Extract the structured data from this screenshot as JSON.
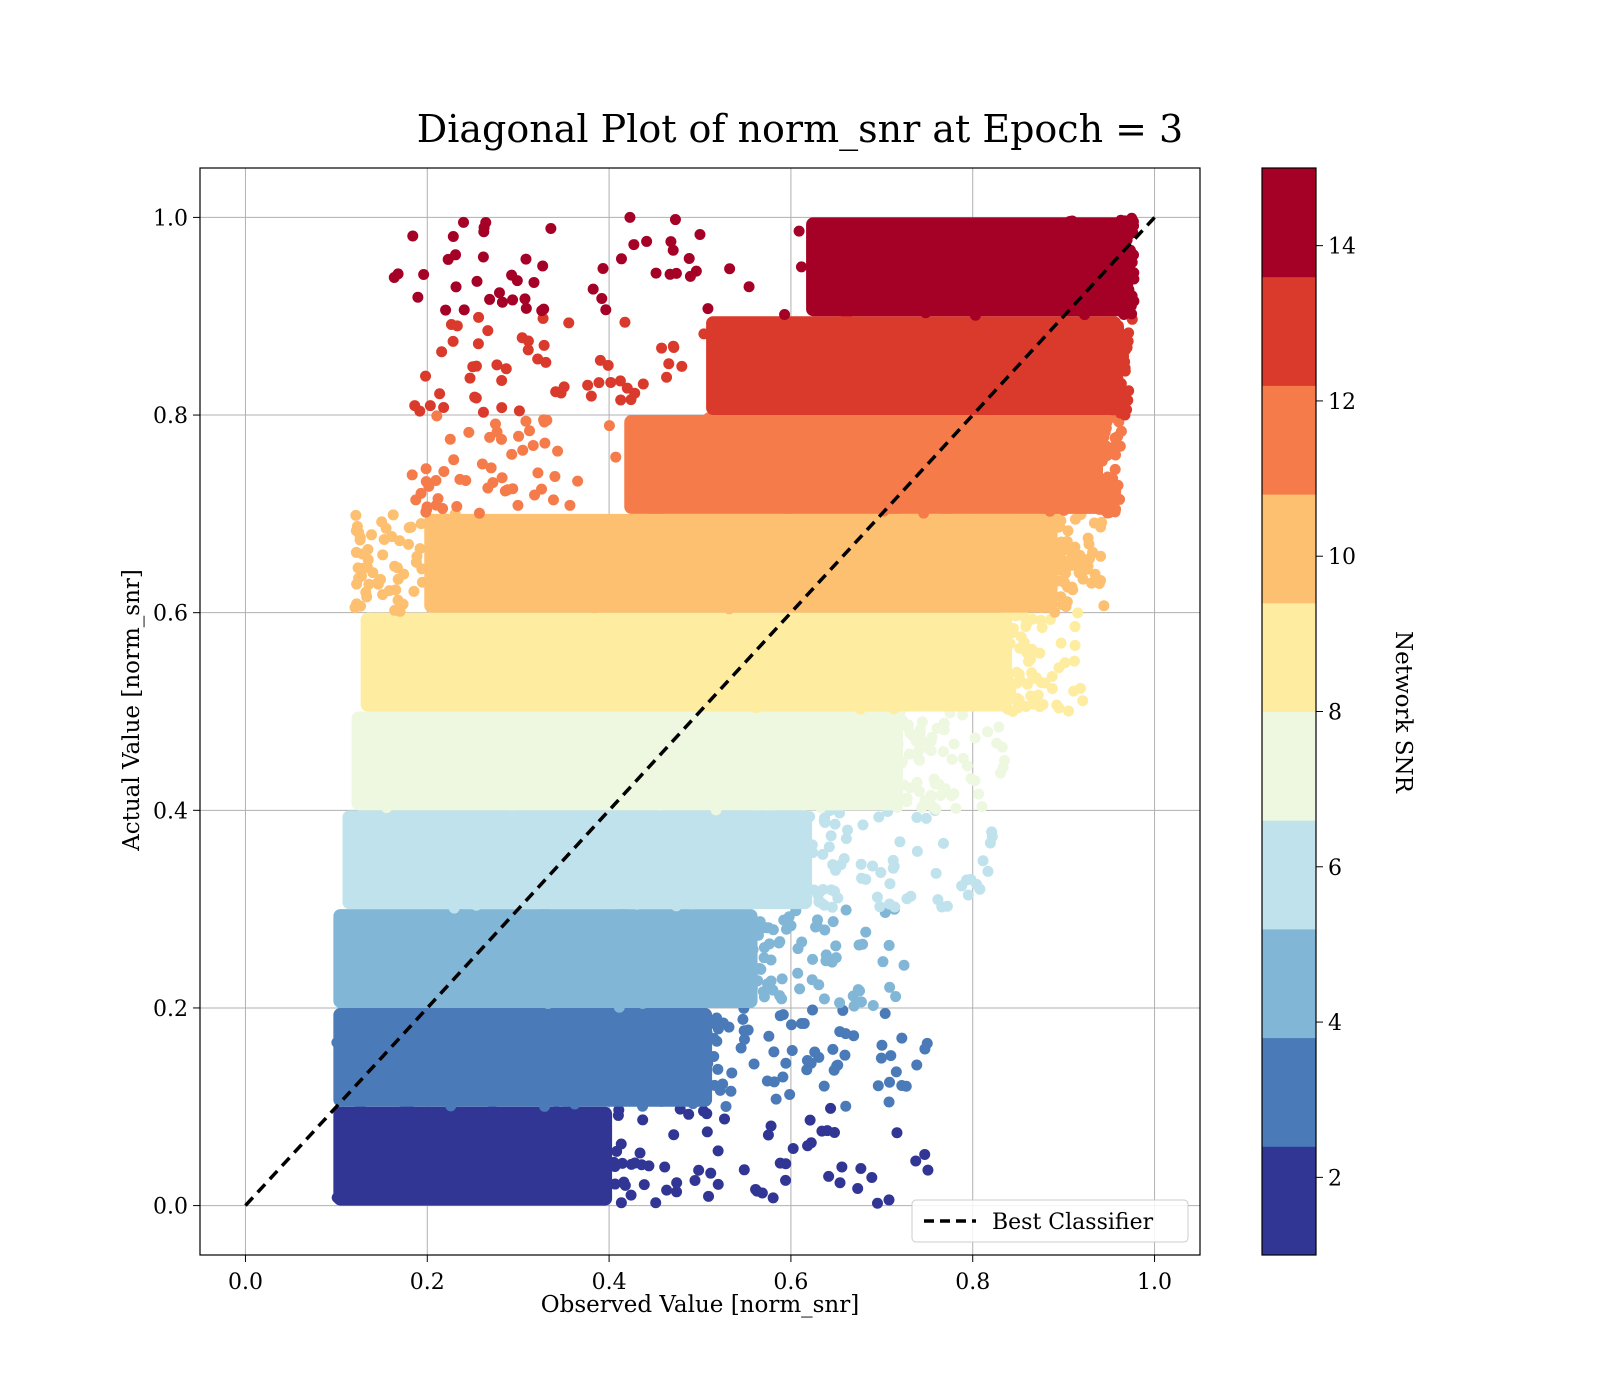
{
  "chart_data": {
    "type": "scatter",
    "title": "Diagonal Plot of norm_snr at Epoch = 3",
    "xlabel": "Observed Value [norm_snr]",
    "ylabel": "Actual Value [norm_snr]",
    "xlim": [
      -0.05,
      1.05
    ],
    "ylim": [
      -0.05,
      1.05
    ],
    "x_ticks": [
      "0.0",
      "0.2",
      "0.4",
      "0.6",
      "0.8",
      "1.0"
    ],
    "y_ticks": [
      "0.0",
      "0.2",
      "0.4",
      "0.6",
      "0.8",
      "1.0"
    ],
    "grid": true,
    "colorbar": {
      "label": "Network SNR",
      "range": [
        1,
        15
      ],
      "ticks": [
        "2",
        "4",
        "6",
        "8",
        "10",
        "12",
        "14"
      ],
      "bands": [
        {
          "from": 1.0,
          "to": 2.4,
          "color": "#313695"
        },
        {
          "from": 2.4,
          "to": 3.8,
          "color": "#4a7ab7"
        },
        {
          "from": 3.8,
          "to": 5.2,
          "color": "#81b6d6"
        },
        {
          "from": 5.2,
          "to": 6.6,
          "color": "#bfe2ed"
        },
        {
          "from": 6.6,
          "to": 8.0,
          "color": "#eef7e0"
        },
        {
          "from": 8.0,
          "to": 9.4,
          "color": "#feeda1"
        },
        {
          "from": 9.4,
          "to": 10.8,
          "color": "#fdbf70"
        },
        {
          "from": 10.8,
          "to": 12.2,
          "color": "#f57b4a"
        },
        {
          "from": 12.2,
          "to": 13.6,
          "color": "#da3a2b"
        },
        {
          "from": 13.6,
          "to": 15.0,
          "color": "#a50026"
        }
      ]
    },
    "scatter_bands": [
      {
        "y": [
          0.0,
          0.1
        ],
        "dense_x": [
          0.1,
          0.4
        ],
        "spread_x": [
          0.4,
          0.75
        ],
        "color": "#313695"
      },
      {
        "y": [
          0.1,
          0.2
        ],
        "dense_x": [
          0.1,
          0.51
        ],
        "spread_x": [
          0.51,
          0.75
        ],
        "color": "#4a7ab7"
      },
      {
        "y": [
          0.2,
          0.3
        ],
        "dense_x": [
          0.1,
          0.56
        ],
        "spread_x": [
          0.56,
          0.72
        ],
        "color": "#81b6d6"
      },
      {
        "y": [
          0.3,
          0.4
        ],
        "dense_x": [
          0.11,
          0.62
        ],
        "spread_x": [
          0.62,
          0.83
        ],
        "color": "#bfe2ed"
      },
      {
        "y": [
          0.4,
          0.5
        ],
        "dense_x": [
          0.12,
          0.72
        ],
        "spread_x": [
          0.72,
          0.85
        ],
        "color": "#eef7e0"
      },
      {
        "y": [
          0.5,
          0.6
        ],
        "dense_x": [
          0.13,
          0.84
        ],
        "spread_x": [
          0.84,
          0.92
        ],
        "color": "#feeda1"
      },
      {
        "y": [
          0.6,
          0.7
        ],
        "dense_x": [
          0.2,
          0.89
        ],
        "spread_x": [
          0.89,
          0.94
        ],
        "color": "#fdbf70"
      },
      {
        "y": [
          0.7,
          0.8
        ],
        "dense_x": [
          0.42,
          0.94
        ],
        "spread_x": [
          0.94,
          0.96
        ],
        "color": "#f57b4a"
      },
      {
        "y": [
          0.8,
          0.9
        ],
        "dense_x": [
          0.51,
          0.96
        ],
        "spread_x": [
          0.96,
          0.97
        ],
        "color": "#da3a2b"
      },
      {
        "y": [
          0.9,
          1.0
        ],
        "dense_x": [
          0.62,
          0.97
        ],
        "spread_x": [
          0.97,
          0.97
        ],
        "color": "#a50026"
      }
    ],
    "series": [
      {
        "name": "Best Classifier",
        "type": "line",
        "style": "dashed",
        "color": "#000000",
        "x": [
          0.0,
          1.0
        ],
        "y": [
          0.0,
          1.0
        ]
      }
    ],
    "legend": {
      "placement": "lower-right",
      "entries": [
        "Best Classifier"
      ]
    }
  }
}
